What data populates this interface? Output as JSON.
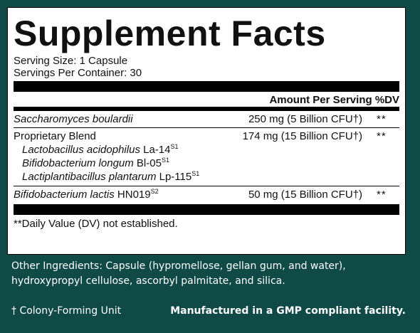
{
  "label": {
    "title": "Supplement Facts",
    "serving_size": "Serving Size: 1 Capsule",
    "servings_per_container": "Servings Per Container: 30",
    "header": "Amount Per Serving %DV",
    "rows": [
      {
        "name": "Saccharomyces boulardii",
        "amount": "250 mg (5 Billion CFU†)",
        "dv": "**"
      },
      {
        "name": "Proprietary Blend",
        "amount": "174 mg (15 Billion CFU†)",
        "dv": "**"
      },
      {
        "name": "HN019",
        "amount": "50 mg (15 Billion CFU†)",
        "dv": "**"
      }
    ],
    "blend_items": [
      {
        "species": "Lactobacillus acidophilus",
        "strain": "La-14",
        "sup": "S1"
      },
      {
        "species": "Bifidobacterium longum",
        "strain": "Bl-05",
        "sup": "S1"
      },
      {
        "species": "Lactiplantibacillus plantarum",
        "strain": "Lp-115",
        "sup": "S1"
      }
    ],
    "last_row": {
      "species": "Bifidobacterium lactis",
      "strain": "HN019",
      "sup": "S2"
    },
    "footnote": "**Daily Value (DV) not established."
  },
  "other_ingredients": "Other Ingredients: Capsule (hypromellose, gellan gum, and water), hydroxypropyl cellulose, ascorbyl palmitate, and silica.",
  "cfu_note": "† Colony-Forming Unit",
  "gmp_note": "Manufactured in a GMP compliant facility.",
  "colors": {
    "background": "#0f4a47",
    "panel": "#ffffff",
    "text": "#111111"
  }
}
